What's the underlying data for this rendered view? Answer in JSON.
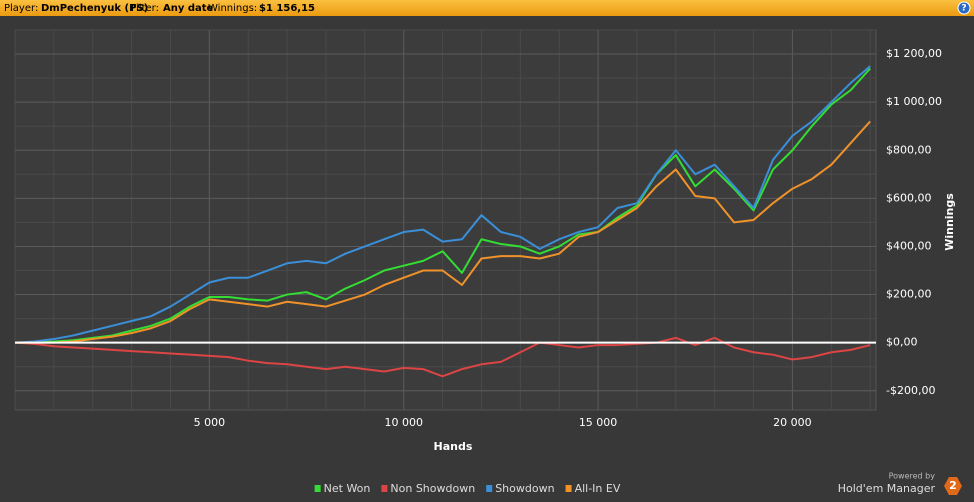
{
  "header": {
    "player_label": "Player:",
    "player": "DmPechenyuk (PS)",
    "filter_label": "Filter:",
    "filter": "Any date",
    "winnings_label": "Winnings:",
    "winnings": "$1 156,15",
    "help": "?"
  },
  "branding": {
    "powered_by": "Powered by",
    "product": "Hold'em Manager",
    "version": "2"
  },
  "chart_data": {
    "type": "line",
    "x_label": "Hands",
    "y_label": "Winnings",
    "x": [
      0,
      500,
      1000,
      1500,
      2000,
      2500,
      3000,
      3500,
      4000,
      4500,
      5000,
      5500,
      6000,
      6500,
      7000,
      7500,
      8000,
      8500,
      9000,
      9500,
      10000,
      10500,
      11000,
      11500,
      12000,
      12500,
      13000,
      13500,
      14000,
      14500,
      15000,
      15500,
      16000,
      16500,
      17000,
      17500,
      18000,
      18500,
      19000,
      19500,
      20000,
      20500,
      21000,
      21500,
      22000
    ],
    "series": [
      {
        "name": "Net Won",
        "color": "#33dd33",
        "values": [
          0,
          2,
          5,
          10,
          20,
          30,
          50,
          70,
          100,
          150,
          190,
          190,
          180,
          175,
          200,
          210,
          180,
          225,
          260,
          300,
          320,
          340,
          380,
          290,
          430,
          410,
          400,
          370,
          400,
          450,
          460,
          520,
          570,
          700,
          780,
          650,
          720,
          640,
          550,
          720,
          800,
          900,
          990,
          1050,
          1140
        ]
      },
      {
        "name": "Non Showdown",
        "color": "#dd4444",
        "values": [
          0,
          -5,
          -15,
          -20,
          -25,
          -30,
          -35,
          -40,
          -45,
          -50,
          -55,
          -60,
          -75,
          -85,
          -90,
          -100,
          -110,
          -100,
          -110,
          -120,
          -105,
          -110,
          -140,
          -110,
          -90,
          -80,
          -40,
          0,
          -10,
          -20,
          -10,
          -10,
          -5,
          0,
          20,
          -10,
          20,
          -20,
          -40,
          -50,
          -70,
          -60,
          -40,
          -30,
          -10
        ]
      },
      {
        "name": "Showdown",
        "color": "#3a8fd8",
        "values": [
          0,
          5,
          15,
          30,
          50,
          70,
          90,
          110,
          150,
          200,
          250,
          270,
          270,
          300,
          330,
          340,
          330,
          370,
          400,
          430,
          460,
          470,
          420,
          430,
          530,
          460,
          440,
          390,
          430,
          460,
          480,
          560,
          580,
          700,
          800,
          700,
          740,
          650,
          560,
          760,
          860,
          920,
          1000,
          1080,
          1150
        ]
      },
      {
        "name": "All-In EV",
        "color": "#f0922a",
        "values": [
          0,
          0,
          0,
          5,
          15,
          25,
          40,
          60,
          90,
          140,
          180,
          170,
          160,
          150,
          170,
          160,
          150,
          175,
          200,
          240,
          270,
          300,
          300,
          240,
          350,
          360,
          360,
          350,
          370,
          440,
          460,
          510,
          560,
          650,
          720,
          610,
          600,
          500,
          510,
          580,
          640,
          680,
          740,
          830,
          920
        ]
      }
    ],
    "xlim": [
      0,
      22150
    ],
    "ylim": [
      -280,
      1300
    ],
    "xticks": [
      {
        "value": 5000,
        "label": "5 000"
      },
      {
        "value": 10000,
        "label": "10 000"
      },
      {
        "value": 15000,
        "label": "15 000"
      },
      {
        "value": 20000,
        "label": "20 000"
      }
    ],
    "yticks": [
      {
        "value": -200,
        "label": "-$200,00"
      },
      {
        "value": 0,
        "label": "$0,00"
      },
      {
        "value": 200,
        "label": "$200,00"
      },
      {
        "value": 400,
        "label": "$400,00"
      },
      {
        "value": 600,
        "label": "$600,00"
      },
      {
        "value": 800,
        "label": "$800,00"
      },
      {
        "value": 1000,
        "label": "$1 000,00"
      },
      {
        "value": 1200,
        "label": "$1 200,00"
      }
    ],
    "grid": true,
    "x_minor_step": 1000,
    "y_minor_step": 100,
    "zero_line": true,
    "legend": "bottom"
  }
}
